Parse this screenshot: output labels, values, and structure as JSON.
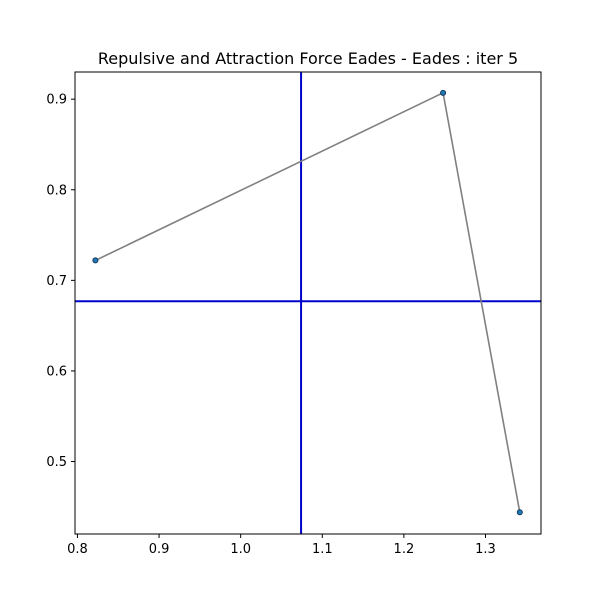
{
  "chart_data": {
    "type": "scatter",
    "title": "Repulsive and Attraction Force Eades - Eades : iter 5",
    "xlabel": "",
    "ylabel": "",
    "xlim": [
      0.797,
      1.368
    ],
    "ylim": [
      0.42,
      0.93
    ],
    "x_ticks": [
      0.8,
      0.9,
      1.0,
      1.1,
      1.2,
      1.3
    ],
    "x_tick_labels": [
      "0.8",
      "0.9",
      "1.0",
      "1.1",
      "1.2",
      "1.3"
    ],
    "y_ticks": [
      0.5,
      0.6,
      0.7,
      0.8,
      0.9
    ],
    "y_tick_labels": [
      "0.5",
      "0.6",
      "0.7",
      "0.8",
      "0.9"
    ],
    "grid": false,
    "nodes": [
      {
        "x": 0.822,
        "y": 0.722
      },
      {
        "x": 1.248,
        "y": 0.907
      },
      {
        "x": 1.342,
        "y": 0.444
      }
    ],
    "edges": [
      [
        0,
        1
      ],
      [
        1,
        2
      ]
    ],
    "reference_lines": {
      "vertical_x": 1.074,
      "horizontal_y": 0.677
    },
    "colors": {
      "edge": "#808080",
      "node": "#1f77b4",
      "node_edge": "#0d2a4a",
      "reference_line": "#0000cd",
      "axes": "#000000"
    }
  }
}
